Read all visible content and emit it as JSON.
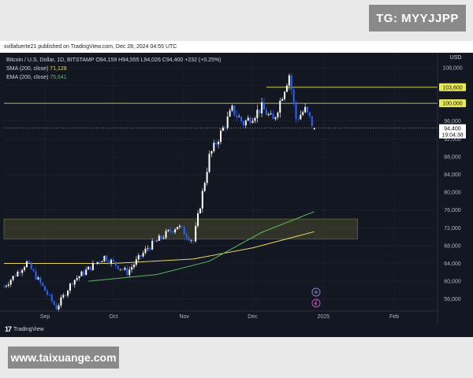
{
  "telegram_badge": "TG: MYYJJPP",
  "watermark_url": "www.taixuange.com",
  "publish_line": "svillafuerte21 published on TradingView.com, Dec 28, 2024 04:55 UTC",
  "legend": {
    "symbol_line": "Bitcoin / U.S. Dollar, 1D, BITSTAMP  O94,159  H94,555  L94,026  C94,400  +232 (+0.25%)",
    "sma_label": "SMA (200, close)",
    "sma_value": "71,128",
    "ema_label": "EMA (200, close)",
    "ema_value": "75,641"
  },
  "currency": "USD",
  "brand_text": "TradingView",
  "brand_logo": "17",
  "price_axis": {
    "ticks": [
      "108,000",
      "104,000",
      "100,000",
      "96,000",
      "92,000",
      "88,000",
      "84,000",
      "80,000",
      "76,000",
      "72,000",
      "68,000",
      "64,000",
      "60,000",
      "56,000"
    ],
    "level_labels": [
      "103,600",
      "100,000"
    ],
    "last_price": "94,400",
    "countdown": "19:04:38"
  },
  "time_axis": {
    "labels": [
      "Sep",
      "Oct",
      "Nov",
      "Dec",
      "2025",
      "Feb"
    ]
  },
  "colors": {
    "background": "#131722",
    "candle_up": "#ffffff",
    "candle_down": "#2962ff",
    "level_line": "#e8e85a",
    "sma": "#e8d75c",
    "ema": "#5cb85c",
    "support_zone": "#4a4a2e",
    "grid": "#1e2230"
  },
  "chart_data": {
    "type": "candlestick",
    "symbol": "Bitcoin / U.S. Dollar",
    "timeframe": "1D",
    "exchange": "BITSTAMP",
    "ohlc_last": {
      "open": 94159,
      "high": 94555,
      "low": 94026,
      "close": 94400,
      "change": 232,
      "change_pct": 0.25
    },
    "ylim": [
      54000,
      111000
    ],
    "horizontal_levels": [
      103600,
      100000
    ],
    "support_zone": [
      69500,
      74000
    ],
    "x_labels": [
      "Sep",
      "Oct",
      "Nov",
      "Dec",
      "2025",
      "Feb"
    ],
    "series_close_approx": [
      {
        "date": "2024-08-14",
        "value": 58800
      },
      {
        "date": "2024-08-24",
        "value": 64200
      },
      {
        "date": "2024-09-06",
        "value": 54000
      },
      {
        "date": "2024-09-13",
        "value": 60000
      },
      {
        "date": "2024-09-27",
        "value": 65500
      },
      {
        "date": "2024-10-07",
        "value": 62000
      },
      {
        "date": "2024-10-16",
        "value": 67500
      },
      {
        "date": "2024-10-29",
        "value": 72500
      },
      {
        "date": "2024-11-05",
        "value": 69000
      },
      {
        "date": "2024-11-12",
        "value": 88000
      },
      {
        "date": "2024-11-22",
        "value": 98500
      },
      {
        "date": "2024-11-27",
        "value": 95500
      },
      {
        "date": "2024-12-05",
        "value": 99000
      },
      {
        "date": "2024-12-10",
        "value": 96000
      },
      {
        "date": "2024-12-17",
        "value": 106500
      },
      {
        "date": "2024-12-20",
        "value": 96500
      },
      {
        "date": "2024-12-24",
        "value": 98500
      },
      {
        "date": "2024-12-28",
        "value": 94400
      }
    ],
    "sma_200_approx": [
      {
        "date": "2024-08-14",
        "value": 64000
      },
      {
        "date": "2024-10-01",
        "value": 64000
      },
      {
        "date": "2024-11-05",
        "value": 65000
      },
      {
        "date": "2024-12-01",
        "value": 67500
      },
      {
        "date": "2024-12-28",
        "value": 71128
      }
    ],
    "ema_200_approx": [
      {
        "date": "2024-09-20",
        "value": 60000
      },
      {
        "date": "2024-10-20",
        "value": 61500
      },
      {
        "date": "2024-11-12",
        "value": 64500
      },
      {
        "date": "2024-12-05",
        "value": 71000
      },
      {
        "date": "2024-12-28",
        "value": 75641
      }
    ]
  }
}
